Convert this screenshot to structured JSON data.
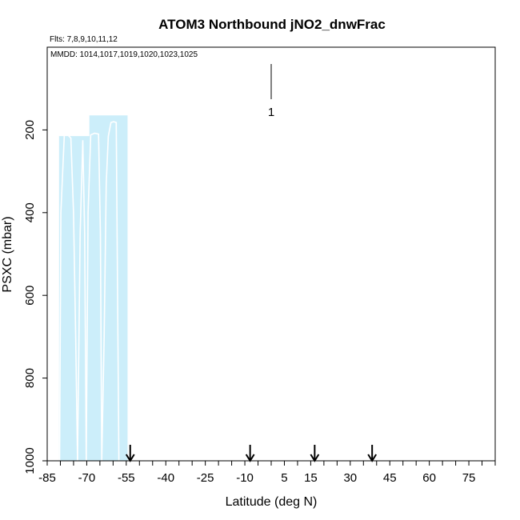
{
  "chart_data": {
    "type": "area",
    "title": "ATOM3 Northbound jNO2_dnwFrac",
    "subtitle_flights": "Flts: 7,8,9,10,11,12",
    "subtitle_dates": "MMDD: 1014,1017,1019,1020,1023,1025",
    "xlabel": "Latitude (deg N)",
    "ylabel": "PSXC (mbar)",
    "xlim": [
      -85,
      85
    ],
    "ylim": [
      1000,
      0
    ],
    "x_tick_labels": [
      "-85",
      "-70",
      "-55",
      "-40",
      "-25",
      "-10",
      "5",
      "15",
      "30",
      "45",
      "60",
      "75"
    ],
    "x_tick_values": [
      -85,
      -70,
      -55,
      -40,
      -25,
      -10,
      5,
      15,
      30,
      45,
      60,
      75
    ],
    "y_tick_labels": [
      "200",
      "400",
      "600",
      "800",
      "1000"
    ],
    "y_tick_values": [
      200,
      400,
      600,
      800,
      1000
    ],
    "fill_color": "#cceefa",
    "line_color": "#ffffff",
    "filled_region": [
      {
        "lat": -80.5,
        "psxc_top": 215
      },
      {
        "lat": -74.5,
        "psxc_top": 215
      },
      {
        "lat": -69.0,
        "psxc_top": 165
      },
      {
        "lat": -54.5,
        "psxc_top": 165
      }
    ],
    "profiles": [
      {
        "x": [
          -80.3,
          -79.8,
          -78.5,
          -77.2,
          -76.0,
          -75.0,
          -74.2,
          -73.5
        ],
        "y": [
          1000,
          400,
          212,
          212,
          220,
          400,
          700,
          1000
        ]
      },
      {
        "x": [
          -73.5,
          -72.5,
          -71.5,
          -70.8,
          -70.2
        ],
        "y": [
          1000,
          450,
          225,
          450,
          1000
        ]
      },
      {
        "x": [
          -70.2,
          -69.5,
          -68.5,
          -67.0,
          -65.5,
          -64.8,
          -64.3
        ],
        "y": [
          1000,
          400,
          212,
          208,
          210,
          450,
          1000
        ]
      },
      {
        "x": [
          -64.3,
          -63.4,
          -62.6,
          -61.8,
          -60.8,
          -59.8,
          -58.8,
          -57.8
        ],
        "y": [
          1000,
          700,
          330,
          215,
          182,
          180,
          182,
          1000
        ]
      }
    ],
    "arrows": [
      {
        "lat": -53.5,
        "label": ""
      },
      {
        "lat": -8.0,
        "label": ""
      },
      {
        "lat": 16.5,
        "label": ""
      },
      {
        "lat": 38.3,
        "label": ""
      }
    ],
    "annotation": {
      "lat": 0,
      "psxc": 115,
      "label": "1"
    }
  }
}
